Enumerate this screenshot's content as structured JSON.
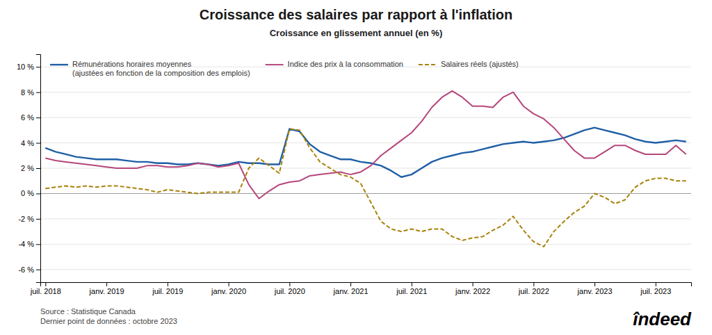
{
  "chart_data": {
    "type": "line",
    "title": "Croissance des salaires par rapport à l'inflation",
    "subtitle": "Croissance en glissement annuel (en %)",
    "annotations": [
      "Source : Statistique Canada\nDernier point de données : octobre 2023",
      "îndeed"
    ],
    "categories": [
      "juil. 2018",
      null,
      null,
      null,
      null,
      null,
      "janv. 2019",
      null,
      null,
      null,
      null,
      null,
      "juil. 2019",
      null,
      null,
      null,
      null,
      null,
      "janv. 2020",
      null,
      null,
      null,
      null,
      null,
      "juil. 2020",
      null,
      null,
      null,
      null,
      null,
      "janv. 2021",
      null,
      null,
      null,
      null,
      null,
      "juil. 2021",
      null,
      null,
      null,
      null,
      null,
      "janv. 2022",
      null,
      null,
      null,
      null,
      null,
      "juil. 2022",
      null,
      null,
      null,
      null,
      null,
      "janv. 2023",
      null,
      null,
      null,
      null,
      null,
      "juil. 2023",
      null,
      null,
      null
    ],
    "ylim": [
      -7,
      11
    ],
    "yticks": [
      {
        "value": -6,
        "label": "-6 %"
      },
      {
        "value": -4,
        "label": "-4 %"
      },
      {
        "value": -2,
        "label": "-2 %"
      },
      {
        "value": 0,
        "label": "0 %"
      },
      {
        "value": 2,
        "label": "2 %"
      },
      {
        "value": 4,
        "label": "4 %"
      },
      {
        "value": 6,
        "label": "6 %"
      },
      {
        "value": 8,
        "label": "8 %"
      },
      {
        "value": 10,
        "label": "10 %"
      }
    ],
    "grid": true,
    "legend": "top-left",
    "series": [
      {
        "name": "Rémunérations horaires moyennes\n(ajustées en fonction de la composition des emplois)",
        "color": "#1F5FA6",
        "line_style": "solid",
        "values": [
          3.6,
          3.3,
          3.1,
          2.9,
          2.8,
          2.7,
          2.7,
          2.7,
          2.6,
          2.5,
          2.5,
          2.4,
          2.4,
          2.3,
          2.3,
          2.4,
          2.3,
          2.2,
          2.3,
          2.5,
          2.4,
          2.4,
          2.3,
          2.3,
          5.1,
          4.9,
          3.9,
          3.3,
          3.0,
          2.7,
          2.7,
          2.5,
          2.4,
          2.2,
          1.8,
          1.3,
          1.5,
          2.0,
          2.5,
          2.8,
          3.0,
          3.2,
          3.3,
          3.5,
          3.7,
          3.9,
          4.0,
          4.1,
          4.0,
          4.1,
          4.2,
          4.4,
          4.7,
          5.0,
          5.2,
          5.0,
          4.8,
          4.6,
          4.3,
          4.1,
          4.0,
          4.1,
          4.2,
          4.1
        ]
      },
      {
        "name": "Indice des prix à la consommation",
        "color": "#B5457A",
        "line_style": "solid",
        "values": [
          2.8,
          2.6,
          2.5,
          2.4,
          2.3,
          2.2,
          2.1,
          2.0,
          2.0,
          2.0,
          2.2,
          2.2,
          2.1,
          2.1,
          2.2,
          2.4,
          2.3,
          2.1,
          2.2,
          2.4,
          0.7,
          -0.4,
          0.2,
          0.7,
          0.9,
          1.0,
          1.4,
          1.5,
          1.6,
          1.7,
          1.5,
          1.7,
          2.2,
          3.0,
          3.6,
          4.2,
          4.8,
          5.7,
          6.8,
          7.6,
          8.1,
          7.6,
          6.9,
          6.9,
          6.8,
          7.6,
          8.0,
          6.9,
          6.3,
          5.9,
          5.2,
          4.3,
          3.4,
          2.8,
          2.8,
          3.3,
          3.8,
          3.8,
          3.4,
          3.1,
          3.1,
          3.1,
          3.8,
          3.1
        ]
      },
      {
        "name": "Salaires réels (ajustés)",
        "color": "#A8820A",
        "line_style": "dashed",
        "values": [
          0.4,
          0.5,
          0.6,
          0.5,
          0.6,
          0.5,
          0.6,
          0.6,
          0.5,
          0.4,
          0.3,
          0.1,
          0.3,
          0.2,
          0.1,
          0.0,
          0.1,
          0.1,
          0.1,
          0.1,
          2.0,
          2.8,
          2.2,
          1.6,
          5.1,
          5.0,
          3.6,
          2.5,
          2.0,
          1.5,
          1.3,
          0.8,
          -0.7,
          -2.2,
          -2.8,
          -3.0,
          -2.8,
          -3.0,
          -2.8,
          -2.8,
          -3.4,
          -3.7,
          -3.5,
          -3.4,
          -2.9,
          -2.5,
          -1.8,
          -2.9,
          -3.8,
          -4.2,
          -3.0,
          -2.2,
          -1.5,
          -1.0,
          0.0,
          -0.3,
          -0.8,
          -0.5,
          0.5,
          1.0,
          1.2,
          1.2,
          1.0,
          1.0
        ]
      }
    ]
  }
}
